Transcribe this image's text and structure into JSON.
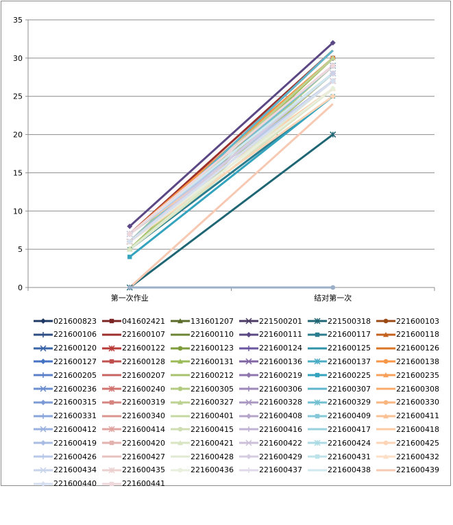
{
  "chart_data": {
    "type": "line",
    "categories": [
      "第一次作业",
      "结对第一次"
    ],
    "ylim": [
      0,
      35
    ],
    "yticks": [
      0,
      5,
      10,
      15,
      20,
      25,
      30,
      35
    ],
    "grid": true,
    "legend_position": "bottom",
    "series": [
      {
        "name": "021600823",
        "color": "#1f3864",
        "marker": "diamond",
        "values": [
          6,
          29
        ]
      },
      {
        "name": "041602421",
        "color": "#7b2423",
        "marker": "square",
        "values": [
          7,
          30
        ]
      },
      {
        "name": "131601207",
        "color": "#5a6b2a",
        "marker": "triangle",
        "values": [
          5,
          30
        ]
      },
      {
        "name": "221500201",
        "color": "#4b3a64",
        "marker": "x",
        "values": [
          6,
          28
        ]
      },
      {
        "name": "221500318",
        "color": "#1f6674",
        "marker": "star",
        "values": [
          0,
          20
        ]
      },
      {
        "name": "221600103",
        "color": "#9c4a14",
        "marker": "circle",
        "values": [
          6,
          29
        ]
      },
      {
        "name": "221600106",
        "color": "#2c4c86",
        "marker": "plus",
        "values": [
          6,
          30
        ]
      },
      {
        "name": "221600107",
        "color": "#9b2f2b",
        "marker": "none",
        "values": [
          7,
          31
        ]
      },
      {
        "name": "221600110",
        "color": "#6b8431",
        "marker": "none",
        "values": [
          5,
          29
        ]
      },
      {
        "name": "221600111",
        "color": "#5a4784",
        "marker": "diamond",
        "values": [
          8,
          32
        ]
      },
      {
        "name": "221600117",
        "color": "#2a7d8e",
        "marker": "square",
        "values": [
          5,
          25
        ]
      },
      {
        "name": "221600118",
        "color": "#c4601d",
        "marker": "triangle",
        "values": [
          6,
          30
        ]
      },
      {
        "name": "221600120",
        "color": "#3a64a8",
        "marker": "x",
        "values": [
          7,
          27
        ]
      },
      {
        "name": "221600122",
        "color": "#b83a36",
        "marker": "star",
        "values": [
          6,
          28
        ]
      },
      {
        "name": "221600123",
        "color": "#7e9c3c",
        "marker": "circle",
        "values": [
          5,
          30
        ]
      },
      {
        "name": "221600124",
        "color": "#6a55a0",
        "marker": "plus",
        "values": [
          7,
          29
        ]
      },
      {
        "name": "221600125",
        "color": "#2f93a8",
        "marker": "none",
        "values": [
          6,
          28
        ]
      },
      {
        "name": "221600126",
        "color": "#d87526",
        "marker": "none",
        "values": [
          6,
          31
        ]
      },
      {
        "name": "221600127",
        "color": "#4472c4",
        "marker": "diamond",
        "values": [
          7,
          28
        ]
      },
      {
        "name": "221600128",
        "color": "#c0504d",
        "marker": "square",
        "values": [
          6,
          29
        ]
      },
      {
        "name": "221600131",
        "color": "#9bbb59",
        "marker": "triangle",
        "values": [
          5,
          30
        ]
      },
      {
        "name": "221600136",
        "color": "#8064a2",
        "marker": "x",
        "values": [
          6,
          29
        ]
      },
      {
        "name": "221600137",
        "color": "#4bacc6",
        "marker": "star",
        "values": [
          6,
          27
        ]
      },
      {
        "name": "221600138",
        "color": "#f79646",
        "marker": "circle",
        "values": [
          7,
          30
        ]
      },
      {
        "name": "221600205",
        "color": "#5b7fc9",
        "marker": "plus",
        "values": [
          6,
          28
        ]
      },
      {
        "name": "221600207",
        "color": "#c96461",
        "marker": "none",
        "values": [
          7,
          29
        ]
      },
      {
        "name": "221600212",
        "color": "#a7c26d",
        "marker": "none",
        "values": [
          5,
          28
        ]
      },
      {
        "name": "221600219",
        "color": "#8f76ae",
        "marker": "diamond",
        "values": [
          6,
          29
        ]
      },
      {
        "name": "221600225",
        "color": "#34a3bd",
        "marker": "square",
        "values": [
          4,
          25
        ]
      },
      {
        "name": "221600235",
        "color": "#f8a05a",
        "marker": "triangle",
        "values": [
          6,
          30
        ]
      },
      {
        "name": "221600236",
        "color": "#6b8ed0",
        "marker": "x",
        "values": [
          7,
          28
        ]
      },
      {
        "name": "221600240",
        "color": "#d0736f",
        "marker": "star",
        "values": [
          6,
          29
        ]
      },
      {
        "name": "221600305",
        "color": "#b3cb80",
        "marker": "circle",
        "values": [
          5,
          29
        ]
      },
      {
        "name": "221600306",
        "color": "#9d86b9",
        "marker": "plus",
        "values": [
          6,
          28
        ]
      },
      {
        "name": "221600307",
        "color": "#5fb6cc",
        "marker": "none",
        "values": [
          6,
          31
        ]
      },
      {
        "name": "221600308",
        "color": "#f9ab6c",
        "marker": "none",
        "values": [
          7,
          27
        ]
      },
      {
        "name": "221600315",
        "color": "#7b9ad6",
        "marker": "diamond",
        "values": [
          6,
          28
        ]
      },
      {
        "name": "221600319",
        "color": "#d6847f",
        "marker": "square",
        "values": [
          7,
          29
        ]
      },
      {
        "name": "221600327",
        "color": "#bdd292",
        "marker": "triangle",
        "values": [
          6,
          30
        ]
      },
      {
        "name": "221600328",
        "color": "#a997c2",
        "marker": "x",
        "values": [
          6,
          27
        ]
      },
      {
        "name": "221600329",
        "color": "#72bfd2",
        "marker": "star",
        "values": [
          6,
          29
        ]
      },
      {
        "name": "221600330",
        "color": "#fab67f",
        "marker": "circle",
        "values": [
          7,
          28
        ]
      },
      {
        "name": "221600331",
        "color": "#8aa5db",
        "marker": "plus",
        "values": [
          6,
          27
        ]
      },
      {
        "name": "221600340",
        "color": "#db9490",
        "marker": "none",
        "values": [
          6,
          28
        ]
      },
      {
        "name": "221600401",
        "color": "#c6d8a2",
        "marker": "none",
        "values": [
          5,
          26
        ]
      },
      {
        "name": "221600408",
        "color": "#b5a5cb",
        "marker": "diamond",
        "values": [
          7,
          29
        ]
      },
      {
        "name": "221600409",
        "color": "#85c8d8",
        "marker": "square",
        "values": [
          6,
          27
        ]
      },
      {
        "name": "221600411",
        "color": "#fbc192",
        "marker": "triangle",
        "values": [
          6,
          26
        ]
      },
      {
        "name": "221600412",
        "color": "#9ab0df",
        "marker": "x",
        "values": [
          7,
          28
        ]
      },
      {
        "name": "221600414",
        "color": "#dfa3a0",
        "marker": "star",
        "values": [
          6,
          27
        ]
      },
      {
        "name": "221600415",
        "color": "#cfdeb2",
        "marker": "circle",
        "values": [
          5,
          26
        ]
      },
      {
        "name": "221600416",
        "color": "#c0b2d3",
        "marker": "plus",
        "values": [
          6,
          28
        ]
      },
      {
        "name": "221600417",
        "color": "#98d1de",
        "marker": "none",
        "values": [
          6,
          27
        ]
      },
      {
        "name": "221600418",
        "color": "#fccba4",
        "marker": "none",
        "values": [
          7,
          26
        ]
      },
      {
        "name": "221600419",
        "color": "#a9bce4",
        "marker": "diamond",
        "values": [
          6,
          27
        ]
      },
      {
        "name": "221600420",
        "color": "#e3b2af",
        "marker": "square",
        "values": [
          7,
          28
        ]
      },
      {
        "name": "221600421",
        "color": "#d8e4c2",
        "marker": "triangle",
        "values": [
          5,
          26
        ]
      },
      {
        "name": "221600422",
        "color": "#cbbfda",
        "marker": "x",
        "values": [
          6,
          27
        ]
      },
      {
        "name": "221600424",
        "color": "#abdae4",
        "marker": "star",
        "values": [
          6,
          28
        ]
      },
      {
        "name": "221600425",
        "color": "#fdd5b6",
        "marker": "circle",
        "values": [
          6,
          25
        ]
      },
      {
        "name": "221600426",
        "color": "#b8c8e8",
        "marker": "plus",
        "values": [
          7,
          27
        ]
      },
      {
        "name": "221600427",
        "color": "#e7c1bf",
        "marker": "none",
        "values": [
          6,
          26
        ]
      },
      {
        "name": "221600428",
        "color": "#e0e9d1",
        "marker": "none",
        "values": [
          5,
          27
        ]
      },
      {
        "name": "221600429",
        "color": "#d6cce2",
        "marker": "diamond",
        "values": [
          6,
          28
        ]
      },
      {
        "name": "221600431",
        "color": "#bde2ea",
        "marker": "square",
        "values": [
          6,
          27
        ]
      },
      {
        "name": "221600432",
        "color": "#fddfc7",
        "marker": "triangle",
        "values": [
          6,
          26
        ]
      },
      {
        "name": "221600434",
        "color": "#c7d4ec",
        "marker": "x",
        "values": [
          7,
          28
        ]
      },
      {
        "name": "221600435",
        "color": "#ebd0cf",
        "marker": "star",
        "values": [
          6,
          27
        ]
      },
      {
        "name": "221600436",
        "color": "#e8efdc",
        "marker": "circle",
        "values": [
          6,
          26
        ]
      },
      {
        "name": "221600437",
        "color": "#e0d8ea",
        "marker": "plus",
        "values": [
          6,
          27
        ]
      },
      {
        "name": "221600438",
        "color": "#cfe9ef",
        "marker": "none",
        "values": [
          7,
          28
        ]
      },
      {
        "name": "221600439",
        "color": "#f7c8b2",
        "marker": "none",
        "values": [
          0,
          24
        ]
      },
      {
        "name": "221600440",
        "color": "#d5dff0",
        "marker": "diamond",
        "values": [
          6,
          27
        ]
      },
      {
        "name": "221600441",
        "color": "#efd8dc",
        "marker": "square",
        "values": [
          7,
          29
        ]
      },
      {
        "name": "",
        "color": "#9bb0c8",
        "marker": "circle",
        "values": [
          0,
          0
        ]
      }
    ]
  }
}
